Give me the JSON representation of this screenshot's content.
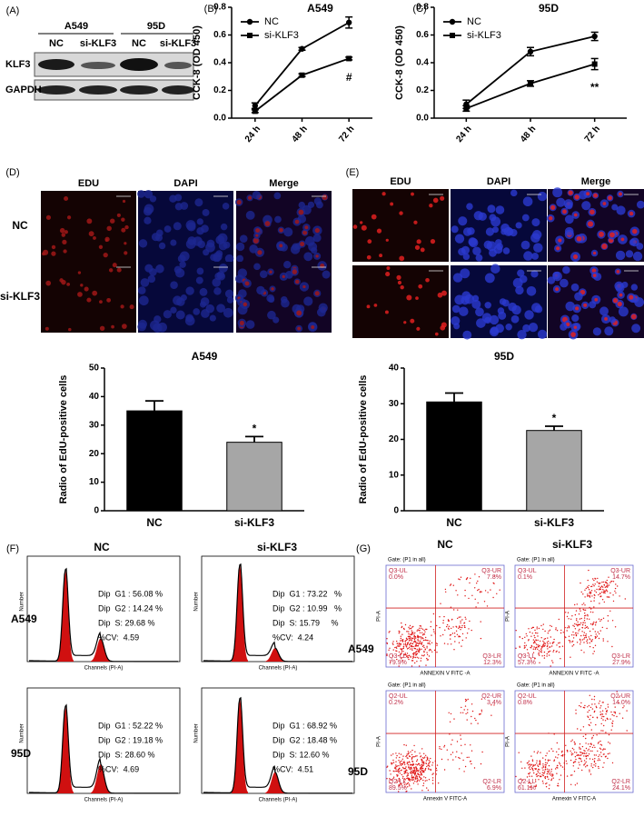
{
  "panel_labels": {
    "A": "(A)",
    "B": "(B)",
    "C": "(C)",
    "D": "(D)",
    "E": "(E)",
    "F": "(F)",
    "G": "(G)"
  },
  "blot": {
    "groups": [
      "A549",
      "95D"
    ],
    "lanes": [
      "NC",
      "si-KLF3",
      "NC",
      "si-KLF3"
    ],
    "rows": [
      "KLF3",
      "GAPDH"
    ]
  },
  "chart_data": [
    {
      "type": "line",
      "title": "A549",
      "y_label": "CCK-8 (OD 450)",
      "categories": [
        "24 h",
        "48 h",
        "72 h"
      ],
      "series": [
        {
          "name": "NC",
          "color": "#000000",
          "marker": "circle",
          "values": [
            0.09,
            0.5,
            0.69
          ],
          "errors": [
            0.02,
            0.01,
            0.04
          ]
        },
        {
          "name": "si-KLF3",
          "color": "#000000",
          "marker": "square",
          "values": [
            0.05,
            0.31,
            0.43
          ],
          "errors": [
            0.01,
            0.01,
            0.01
          ]
        }
      ],
      "ylim": [
        0,
        0.8
      ],
      "yticks": [
        {
          "value": 0,
          "label": "0.0"
        },
        0.2,
        0.4,
        0.6,
        0.8
      ],
      "annotation": "#"
    },
    {
      "type": "line",
      "title": "95D",
      "y_label": "CCK-8 (OD 450)",
      "categories": [
        "24 h",
        "48 h",
        "72 h"
      ],
      "series": [
        {
          "name": "NC",
          "color": "#000000",
          "marker": "circle",
          "values": [
            0.1,
            0.48,
            0.59
          ],
          "errors": [
            0.03,
            0.03,
            0.03
          ]
        },
        {
          "name": "si-KLF3",
          "color": "#000000",
          "marker": "square",
          "values": [
            0.07,
            0.25,
            0.39
          ],
          "errors": [
            0.02,
            0.02,
            0.04
          ]
        }
      ],
      "ylim": [
        0,
        0.8
      ],
      "yticks": [
        {
          "value": 0,
          "label": "0.0"
        },
        0.2,
        0.4,
        0.6,
        0.8
      ],
      "annotation": "**"
    },
    {
      "type": "bar",
      "title": "A549",
      "y_label": "Radio of EdU-positive cells",
      "categories": [
        "NC",
        "si-KLF3"
      ],
      "values": [
        35,
        24
      ],
      "errors": [
        3.5,
        2
      ],
      "colors": [
        "#000000",
        "#a6a6a6"
      ],
      "ylim": [
        0,
        50
      ],
      "yticks": [
        0,
        10,
        20,
        30,
        40,
        50
      ],
      "annotation": "*"
    },
    {
      "type": "bar",
      "title": "95D",
      "y_label": "Radio of EdU-positive cells",
      "categories": [
        "NC",
        "si-KLF3"
      ],
      "values": [
        30.5,
        22.5
      ],
      "errors": [
        2.5,
        1.2
      ],
      "colors": [
        "#000000",
        "#a6a6a6"
      ],
      "ylim": [
        0,
        40
      ],
      "yticks": [
        0,
        10,
        20,
        30,
        40
      ],
      "annotation": "*"
    }
  ],
  "micrographs": [
    {
      "columns": [
        "EDU",
        "DAPI",
        "Merge"
      ],
      "rows": [
        "NC",
        "si-KLF3"
      ]
    },
    {
      "columns": [
        "EDU",
        "DAPI",
        "Merge"
      ]
    }
  ],
  "cell_cycle": {
    "columns": [
      "NC",
      "si-KLF3"
    ],
    "rows": [
      "A549",
      "95D"
    ],
    "x_label": "Channels (PI-A)",
    "y_label": "Number",
    "panels": [
      {
        "stats": [
          "Dip  G1 : 56.08 %",
          "Dip  G2 : 14.24 %",
          "Dip  S: 29.68 %",
          "%CV:  4.59"
        ]
      },
      {
        "stats": [
          "Dip  G1 : 73.22   %",
          "Dip  G2 : 10.99   %",
          "Dip  S: 15.79     %",
          "%CV:  4.24"
        ]
      },
      {
        "stats": [
          "Dip  G1 : 52.22 %",
          "Dip  G2 : 19.18 %",
          "Dip  S: 28.60 %",
          "%CV:  4.69"
        ]
      },
      {
        "stats": [
          "Dip  G1 : 68.92 %",
          "Dip  G2 : 18.48 %",
          "Dip  S: 12.60 %",
          "%CV:  4.51"
        ]
      }
    ]
  },
  "apoptosis": {
    "columns": [
      "NC",
      "si-KLF3"
    ],
    "rows": [
      "A549",
      "95D"
    ],
    "y_label": "PI-A",
    "panels": [
      {
        "gate": "Gate: (P1 in all)",
        "x_label": "ANNEXIN V FITC -A",
        "labels": [
          "Q3-UL",
          "Q3-UR",
          "Q3-LL",
          "Q3-LR"
        ],
        "values": [
          "0.0%",
          "7.8%",
          "79.9%",
          "12.3%"
        ]
      },
      {
        "gate": "Gate: (P1 in all)",
        "x_label": "ANNEXIN V FITC -A",
        "labels": [
          "Q3-UL",
          "Q3-UR",
          "Q3-LL",
          "Q3-LR"
        ],
        "values": [
          "0.1%",
          "14.7%",
          "57.3%",
          "27.9%"
        ]
      },
      {
        "gate": "Gate: (P1 in all)",
        "x_label": "Annexin V FITC-A",
        "labels": [
          "Q2-UL",
          "Q2-UR",
          "Q2-LL",
          "Q2-LR"
        ],
        "values": [
          "0.2%",
          "3.4%",
          "89.5%",
          "6.9%"
        ]
      },
      {
        "gate": "Gate: (P1 in all)",
        "x_label": "Annexin V FITC-A",
        "labels": [
          "Q2-UL",
          "Q2-UR",
          "Q2-LL",
          "Q2-LR"
        ],
        "values": [
          "0.8%",
          "14.0%",
          "61.1%",
          "24.1%"
        ]
      }
    ]
  }
}
